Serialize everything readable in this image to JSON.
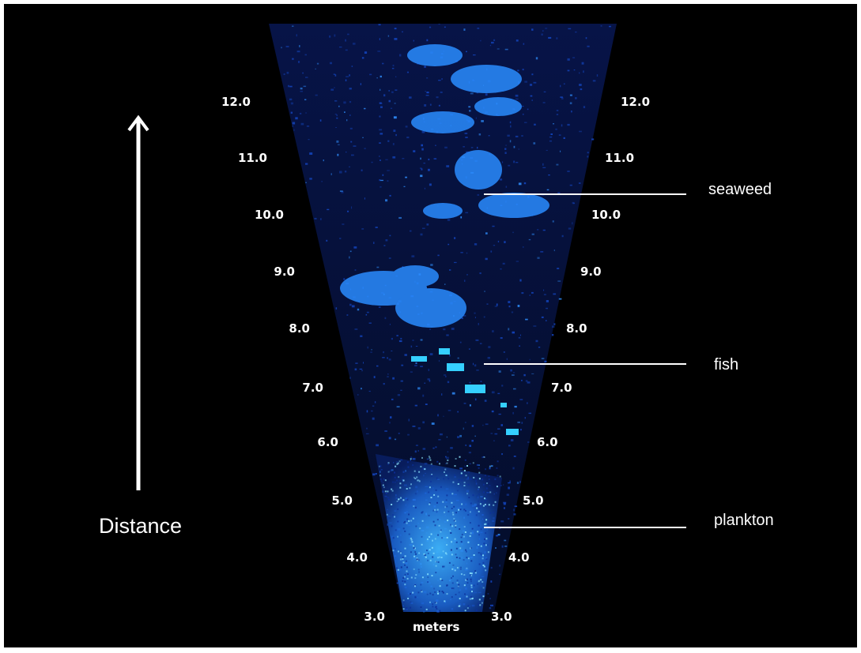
{
  "image": {
    "unit_label": "meters",
    "axis_label": "Distance",
    "ticks_left": [
      "12.0",
      "11.0",
      "10.0",
      "9.0",
      "8.0",
      "7.0",
      "6.0",
      "5.0",
      "4.0",
      "3.0"
    ],
    "ticks_right": [
      "12.0",
      "11.0",
      "10.0",
      "9.0",
      "8.0",
      "7.0",
      "6.0",
      "5.0",
      "4.0",
      "3.0"
    ],
    "callouts": [
      {
        "label": "seaweed"
      },
      {
        "label": "fish"
      },
      {
        "label": "plankton"
      }
    ],
    "colors": {
      "background": "#000000",
      "echo": "#1a6cff",
      "echo_bright": "#33d4ff",
      "text": "#ffffff"
    }
  }
}
